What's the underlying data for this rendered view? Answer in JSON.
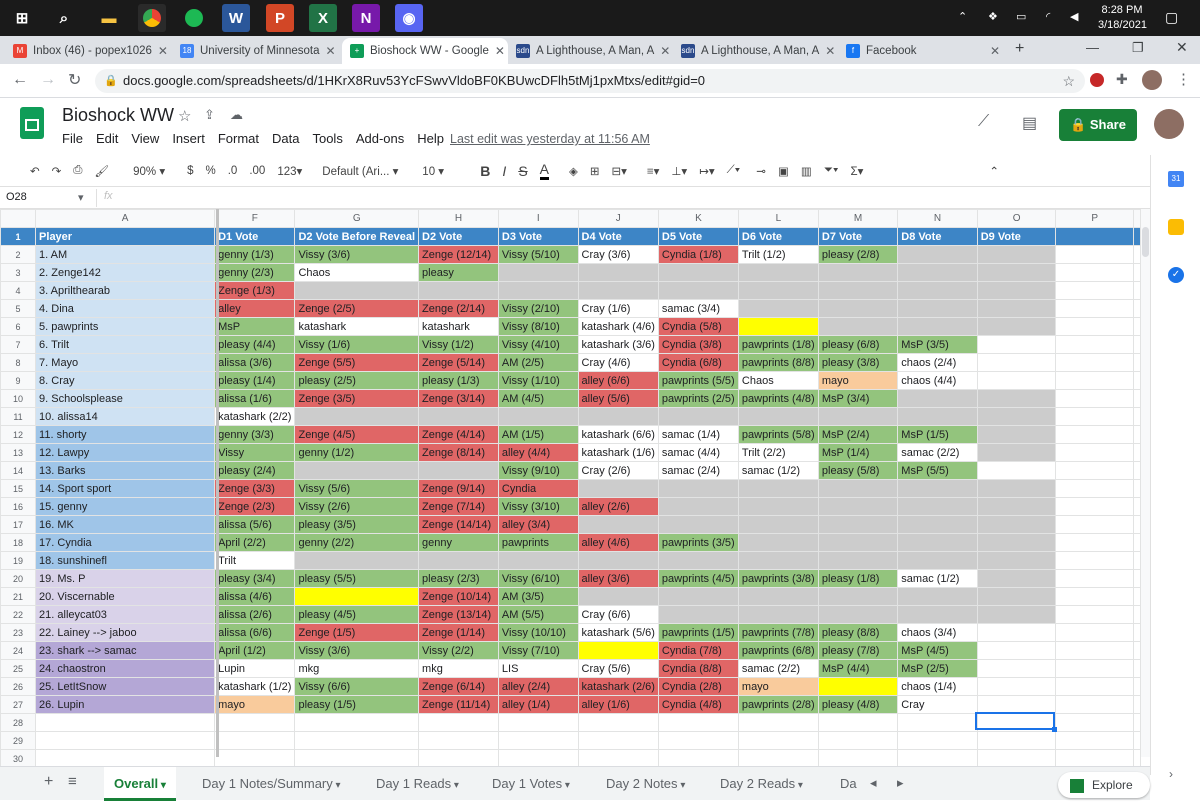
{
  "taskbar": {
    "time": "8:28 PM",
    "date": "3/18/2021"
  },
  "tabs": [
    {
      "label": "Inbox (46) - popex1026",
      "color": "#ea4335",
      "glyph": "M"
    },
    {
      "label": "University of Minnesota",
      "color": "#4285f4",
      "glyph": "18"
    },
    {
      "label": "Bioshock WW - Google",
      "color": "#0f9d58",
      "glyph": "+"
    },
    {
      "label": "A Lighthouse, A Man, A",
      "color": "#2b4a8b",
      "glyph": "sdn"
    },
    {
      "label": "A Lighthouse, A Man, A",
      "color": "#2b4a8b",
      "glyph": "sdn"
    },
    {
      "label": "Facebook",
      "color": "#1877f2",
      "glyph": "f"
    }
  ],
  "url": "docs.google.com/spreadsheets/d/1HKrX8Ruv53YcFSwvVldoBF0KBUwcDFlh5tMj1pxMtxs/edit#gid=0",
  "doc": {
    "title": "Bioshock WW",
    "menus": [
      "File",
      "Edit",
      "View",
      "Insert",
      "Format",
      "Data",
      "Tools",
      "Add-ons",
      "Help"
    ],
    "last_edit": "Last edit was yesterday at 11:56 AM",
    "share": "Share"
  },
  "toolbar": {
    "zoom": "90%",
    "currency": "$",
    "percent": "%",
    "dec_less": ".0",
    "dec_more": ".00",
    "format": "123",
    "font": "Default (Ari...",
    "size": "10"
  },
  "formula": {
    "cellref": "O28",
    "fx": "fx"
  },
  "columns": [
    "A",
    "F",
    "G",
    "H",
    "I",
    "J",
    "K",
    "L",
    "M",
    "N",
    "O",
    "P"
  ],
  "header_row": [
    "Player",
    "D1 Vote",
    "D2 Vote Before Reveal",
    "D2 Vote",
    "D3 Vote",
    "D4 Vote",
    "D5 Vote",
    "D6 Vote",
    "D7 Vote",
    "D8 Vote",
    "D9 Vote",
    ""
  ],
  "rows": [
    [
      "1. AM",
      "genny (1/3)",
      "Vissy (3/6)",
      "Zenge (12/14)",
      "Vissy (5/10)",
      "Cray (3/6)",
      "Cyndia (1/8)",
      "Trilt (1/2)",
      "pleasy (2/8)",
      "",
      "",
      ""
    ],
    [
      "2. Zenge142",
      "genny (2/3)",
      "Chaos",
      "pleasy",
      "",
      "",
      "",
      "",
      "",
      "",
      "",
      ""
    ],
    [
      "3. Aprilthearab",
      "Zenge (1/3)",
      "",
      "",
      "",
      "",
      "",
      "",
      "",
      "",
      "",
      ""
    ],
    [
      "4. Dina",
      "alley",
      "Zenge (2/5)",
      "Zenge (2/14)",
      "Vissy (2/10)",
      "Cray (1/6)",
      "samac (3/4)",
      "",
      "",
      "",
      "",
      ""
    ],
    [
      "5. pawprints",
      "MsP",
      "katashark",
      "katashark",
      "Vissy (8/10)",
      "katashark (4/6)",
      "Cyndia (5/8)",
      "",
      "",
      "",
      "",
      ""
    ],
    [
      "6. Trilt",
      "pleasy (4/4)",
      "Vissy (1/6)",
      "Vissy (1/2)",
      "Vissy (4/10)",
      "katashark (3/6)",
      "Cyndia (3/8)",
      "pawprints (1/8)",
      "pleasy (6/8)",
      "MsP (3/5)",
      "",
      ""
    ],
    [
      "7. Mayo",
      "alissa (3/6)",
      "Zenge (5/5)",
      "Zenge (5/14)",
      "AM (2/5)",
      "Cray (4/6)",
      "Cyndia (6/8)",
      "pawprints (8/8)",
      "pleasy (3/8)",
      "chaos (2/4)",
      "",
      ""
    ],
    [
      "8. Cray",
      "pleasy (1/4)",
      "pleasy (2/5)",
      "pleasy (1/3)",
      "Vissy (1/10)",
      "alley (6/6)",
      "pawprints (5/5)",
      "Chaos",
      "mayo",
      "chaos (4/4)",
      "",
      ""
    ],
    [
      "9. Schoolsplease",
      "alissa (1/6)",
      "Zenge (3/5)",
      "Zenge (3/14)",
      "AM (4/5)",
      "alley (5/6)",
      "pawprints (2/5)",
      "pawprints (4/8)",
      "MsP (3/4)",
      "",
      "",
      ""
    ],
    [
      "10. alissa14",
      "katashark (2/2)",
      "",
      "",
      "",
      "",
      "",
      "",
      "",
      "",
      "",
      ""
    ],
    [
      "11. shorty",
      "genny (3/3)",
      "Zenge (4/5)",
      "Zenge (4/14)",
      "AM (1/5)",
      "katashark (6/6)",
      "samac (1/4)",
      "pawprints (5/8)",
      "MsP (2/4)",
      "MsP (1/5)",
      "",
      ""
    ],
    [
      "12. Lawpy",
      "Vissy",
      "genny (1/2)",
      "Zenge (8/14)",
      "alley (4/4)",
      "katashark (1/6)",
      "samac (4/4)",
      "Trilt (2/2)",
      "MsP (1/4)",
      "samac (2/2)",
      "",
      ""
    ],
    [
      "13. Barks",
      "pleasy (2/4)",
      "",
      "",
      "Vissy (9/10)",
      "Cray (2/6)",
      "samac (2/4)",
      "samac (1/2)",
      "pleasy (5/8)",
      "MsP (5/5)",
      "",
      ""
    ],
    [
      "14. Sport sport",
      "Zenge (3/3)",
      "Vissy (5/6)",
      "Zenge (9/14)",
      "Cyndia",
      "",
      "",
      "",
      "",
      "",
      "",
      ""
    ],
    [
      "15. genny",
      "Zenge (2/3)",
      "Vissy (2/6)",
      "Zenge (7/14)",
      "Vissy (3/10)",
      "alley (2/6)",
      "",
      "",
      "",
      "",
      "",
      ""
    ],
    [
      "16. MK",
      "alissa (5/6)",
      "pleasy (3/5)",
      "Zenge (14/14)",
      "alley (3/4)",
      "",
      "",
      "",
      "",
      "",
      "",
      ""
    ],
    [
      "17. Cyndia",
      "April (2/2)",
      "genny (2/2)",
      "genny",
      "pawprints",
      "alley (4/6)",
      "pawprints (3/5)",
      "",
      "",
      "",
      "",
      ""
    ],
    [
      "18. sunshinefl",
      "Trilt",
      "",
      "",
      "",
      "",
      "",
      "",
      "",
      "",
      "",
      ""
    ],
    [
      "19. Ms. P",
      "pleasy (3/4)",
      "pleasy (5/5)",
      "pleasy (2/3)",
      "Vissy (6/10)",
      "alley (3/6)",
      "pawprints (4/5)",
      "pawprints (3/8)",
      "pleasy (1/8)",
      "samac (1/2)",
      "",
      ""
    ],
    [
      "20. Viscernable",
      "alissa (4/6)",
      "",
      "Zenge (10/14)",
      "AM (3/5)",
      "",
      "",
      "",
      "",
      "",
      "",
      ""
    ],
    [
      "21. alleycat03",
      "alissa (2/6)",
      "pleasy (4/5)",
      "Zenge (13/14)",
      "AM (5/5)",
      "Cray (6/6)",
      "",
      "",
      "",
      "",
      "",
      ""
    ],
    [
      "22. Lainey --> jaboo",
      "alissa (6/6)",
      "Zenge (1/5)",
      "Zenge (1/14)",
      "Vissy (10/10)",
      "katashark (5/6)",
      "pawprints (1/5)",
      "pawprints (7/8)",
      "pleasy (8/8)",
      "chaos (3/4)",
      "",
      ""
    ],
    [
      "23. shark --> samac",
      "April (1/2)",
      "Vissy (3/6)",
      "Vissy (2/2)",
      "Vissy (7/10)",
      "",
      "Cyndia (7/8)",
      "pawprints (6/8)",
      "pleasy (7/8)",
      "MsP (4/5)",
      "",
      ""
    ],
    [
      "24. chaostron",
      "Lupin",
      "mkg",
      "mkg",
      "LIS",
      "Cray (5/6)",
      "Cyndia (8/8)",
      "samac (2/2)",
      "MsP (4/4)",
      "MsP (2/5)",
      "",
      ""
    ],
    [
      "25. LetItSnow",
      "katashark (1/2)",
      "Vissy (6/6)",
      "Zenge (6/14)",
      "alley (2/4)",
      "katashark (2/6)",
      "Cyndia (2/8)",
      "mayo",
      "",
      "chaos (1/4)",
      "",
      ""
    ],
    [
      "26. Lupin",
      "mayo",
      "pleasy (1/5)",
      "Zenge (11/14)",
      "alley (1/4)",
      "alley (1/6)",
      "Cyndia (4/8)",
      "pawprints (2/8)",
      "pleasy (4/8)",
      "Cray",
      "",
      ""
    ]
  ],
  "colors": [
    [
      "a",
      "g",
      "g",
      "r",
      "g",
      "w",
      "r",
      "w",
      "g",
      "gr",
      "gr"
    ],
    [
      "a",
      "g",
      "w",
      "g",
      "gr",
      "gr",
      "gr",
      "gr",
      "gr",
      "gr",
      "gr"
    ],
    [
      "a",
      "r",
      "gr",
      "gr",
      "gr",
      "gr",
      "gr",
      "gr",
      "gr",
      "gr",
      "gr"
    ],
    [
      "a",
      "r",
      "r",
      "r",
      "g",
      "w",
      "w",
      "gr",
      "gr",
      "gr",
      "gr"
    ],
    [
      "a",
      "g",
      "w",
      "w",
      "g",
      "w",
      "r",
      "y",
      "gr",
      "gr",
      "gr"
    ],
    [
      "a",
      "g",
      "g",
      "g",
      "g",
      "w",
      "r",
      "g",
      "g",
      "g",
      "w"
    ],
    [
      "a",
      "g",
      "r",
      "r",
      "g",
      "w",
      "r",
      "g",
      "g",
      "w",
      "w"
    ],
    [
      "a",
      "g",
      "g",
      "g",
      "g",
      "r",
      "g",
      "w",
      "o",
      "w",
      "w"
    ],
    [
      "a",
      "g",
      "r",
      "r",
      "g",
      "r",
      "g",
      "g",
      "g",
      "gr",
      "gr"
    ],
    [
      "a",
      "w",
      "gr",
      "gr",
      "gr",
      "gr",
      "gr",
      "gr",
      "gr",
      "gr",
      "gr"
    ],
    [
      "b",
      "g",
      "r",
      "r",
      "g",
      "w",
      "w",
      "g",
      "g",
      "g",
      "gr"
    ],
    [
      "b",
      "g",
      "g",
      "r",
      "r",
      "w",
      "w",
      "w",
      "g",
      "w",
      "gr"
    ],
    [
      "b",
      "g",
      "gr",
      "gr",
      "g",
      "w",
      "w",
      "w",
      "g",
      "g",
      "w"
    ],
    [
      "b",
      "r",
      "g",
      "r",
      "r",
      "gr",
      "gr",
      "gr",
      "gr",
      "gr",
      "gr"
    ],
    [
      "b",
      "r",
      "g",
      "r",
      "g",
      "r",
      "gr",
      "gr",
      "gr",
      "gr",
      "gr"
    ],
    [
      "b",
      "g",
      "g",
      "r",
      "r",
      "gr",
      "gr",
      "gr",
      "gr",
      "gr",
      "gr"
    ],
    [
      "b",
      "g",
      "g",
      "g",
      "g",
      "r",
      "g",
      "gr",
      "gr",
      "gr",
      "gr"
    ],
    [
      "b",
      "w",
      "gr",
      "gr",
      "gr",
      "gr",
      "gr",
      "gr",
      "gr",
      "gr",
      "gr"
    ],
    [
      "c",
      "g",
      "g",
      "g",
      "g",
      "r",
      "g",
      "g",
      "g",
      "w",
      "gr"
    ],
    [
      "c",
      "g",
      "y",
      "r",
      "g",
      "gr",
      "gr",
      "gr",
      "gr",
      "gr",
      "gr"
    ],
    [
      "c",
      "g",
      "g",
      "r",
      "g",
      "w",
      "gr",
      "gr",
      "gr",
      "gr",
      "gr"
    ],
    [
      "c",
      "g",
      "r",
      "r",
      "g",
      "w",
      "g",
      "g",
      "g",
      "w",
      "w"
    ],
    [
      "d",
      "g",
      "g",
      "g",
      "g",
      "y",
      "r",
      "g",
      "g",
      "g",
      "w"
    ],
    [
      "d",
      "w",
      "w",
      "w",
      "w",
      "w",
      "r",
      "w",
      "g",
      "g",
      "w"
    ],
    [
      "d",
      "w",
      "g",
      "r",
      "r",
      "r",
      "r",
      "o",
      "y",
      "w",
      "w"
    ],
    [
      "d",
      "o",
      "g",
      "r",
      "r",
      "r",
      "r",
      "g",
      "g",
      "w",
      "w"
    ]
  ],
  "player_colors": {
    "a": "#cfe2f3",
    "b": "#9fc5e8",
    "c": "#d9d2e9",
    "d": "#b4a7d6"
  },
  "sheet_tabs": [
    "Overall",
    "Day 1 Notes/Summary",
    "Day 1 Reads",
    "Day 1 Votes",
    "Day 2 Notes",
    "Day 2 Reads",
    "Da"
  ],
  "explore": "Explore"
}
